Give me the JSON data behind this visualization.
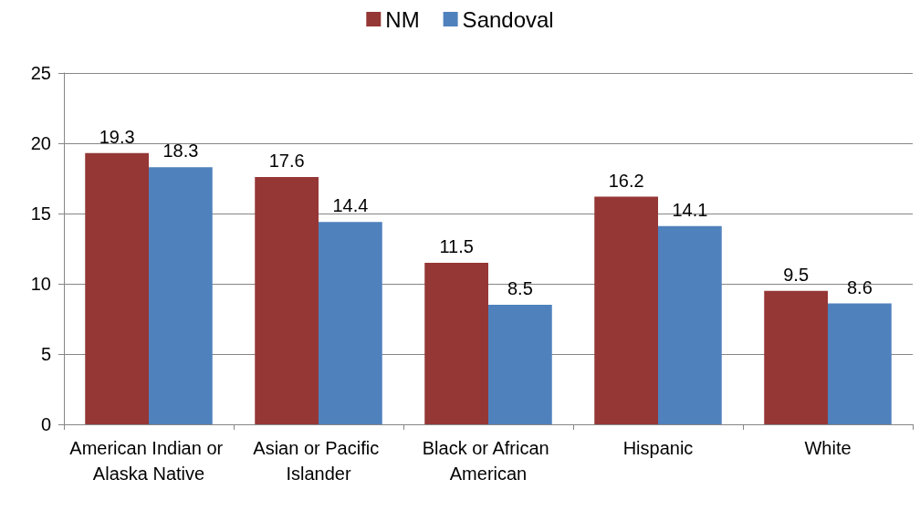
{
  "chart_data": {
    "type": "bar",
    "categories": [
      "American Indian or Alaska Native",
      "Asian or Pacific Islander",
      "Black or African American",
      "Hispanic",
      "White"
    ],
    "series": [
      {
        "name": "NM",
        "color": "#953735",
        "values": [
          19.3,
          17.6,
          11.5,
          16.2,
          9.5
        ]
      },
      {
        "name": "Sandoval",
        "color": "#4f81bd",
        "values": [
          18.3,
          14.4,
          8.5,
          14.1,
          8.6
        ]
      }
    ],
    "ylim": [
      0,
      25
    ],
    "yticks": [
      0,
      5,
      10,
      15,
      20,
      25
    ],
    "grid": "y",
    "legend": "top",
    "data_labels": true
  }
}
